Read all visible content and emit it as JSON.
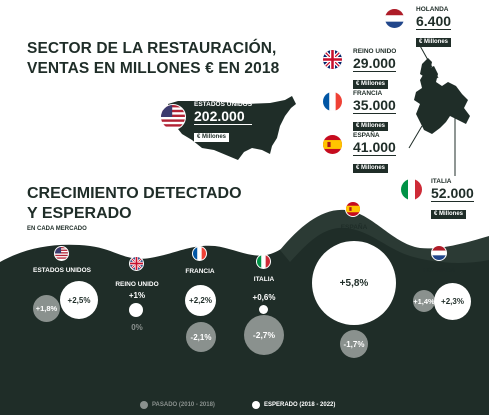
{
  "header": {
    "title_line1": "SECTOR DE LA RESTAURACIÓN,",
    "title_line2": "VENTAS EN MILLONES € EN 2018"
  },
  "sales": [
    {
      "id": "holanda",
      "country": "HOLANDA",
      "value": "6.400",
      "unit": "€ Millones",
      "flag": "netherlands-flag-icon"
    },
    {
      "id": "reino-unido",
      "country": "REINO UNIDO",
      "value": "29.000",
      "unit": "€ Millones",
      "flag": "uk-flag-icon"
    },
    {
      "id": "francia",
      "country": "FRANCIA",
      "value": "35.000",
      "unit": "€ Millones",
      "flag": "france-flag-icon"
    },
    {
      "id": "espana",
      "country": "ESPAÑA",
      "value": "41.000",
      "unit": "€ Millones",
      "flag": "spain-flag-icon"
    },
    {
      "id": "italia",
      "country": "ITALIA",
      "value": "52.000",
      "unit": "€ Millones",
      "flag": "italy-flag-icon"
    },
    {
      "id": "estados-unidos",
      "country": "ESTADOS UNIDOS",
      "value": "202.000",
      "unit": "€ Millones",
      "flag": "usa-flag-icon"
    }
  ],
  "growth": {
    "title_line1": "CRECIMIENTO DETECTADO",
    "title_line2": "Y ESPERADO",
    "subtitle": "EN CADA MERCADO",
    "markets": [
      {
        "id": "estados-unidos",
        "label": "ESTADOS UNIDOS",
        "past": "+1,8%",
        "expected": "+2,5%"
      },
      {
        "id": "reino-unido",
        "label": "REINO UNIDO",
        "past": "0%",
        "expected": "+1%"
      },
      {
        "id": "francia",
        "label": "FRANCIA",
        "past": "-2,1%",
        "expected": "+2,2%"
      },
      {
        "id": "italia",
        "label": "ITALIA",
        "past": "-2,7%",
        "expected": "+0,6%"
      },
      {
        "id": "espana",
        "label": "ESPAÑA",
        "past": "-1,7%",
        "expected": "+5,8%"
      },
      {
        "id": "holanda",
        "label": "HOLANDA",
        "past": "+1,4%",
        "expected": "+2,3%"
      }
    ]
  },
  "legend": {
    "past": "PASADO (2010 - 2018)",
    "expected": "ESPERADO (2018 - 2022)"
  },
  "colors": {
    "dark": "#1f2d28",
    "grey": "#8a918e",
    "white": "#ffffff"
  }
}
